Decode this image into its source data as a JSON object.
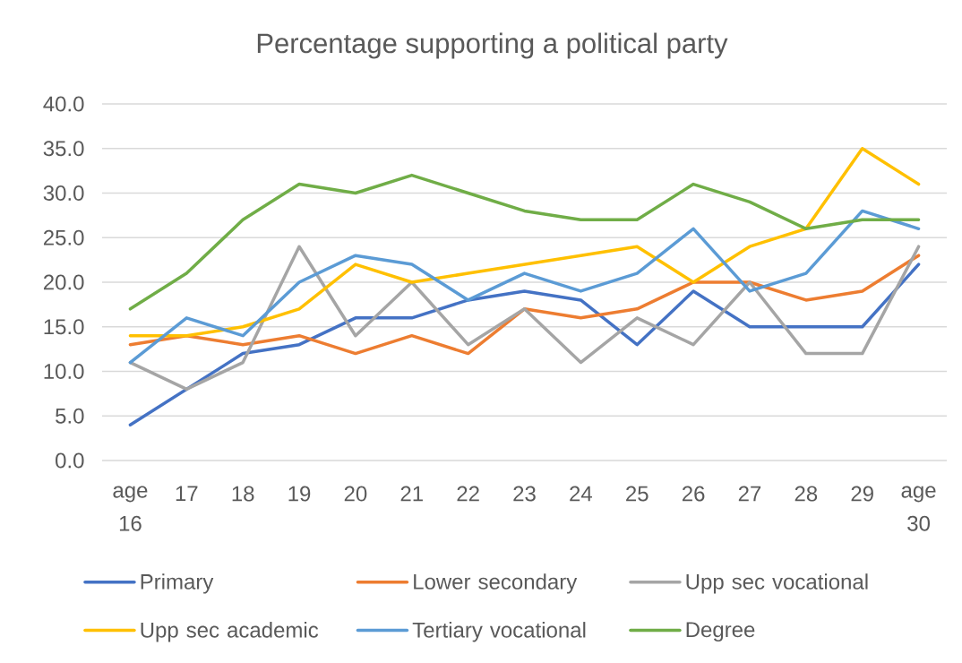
{
  "chart_data": {
    "type": "line",
    "title": "Percentage supporting a political party",
    "categories": [
      "age 16",
      "17",
      "18",
      "19",
      "20",
      "21",
      "22",
      "23",
      "24",
      "25",
      "26",
      "27",
      "28",
      "29",
      "age 30"
    ],
    "series": [
      {
        "name": "Primary",
        "color": "#4472c4",
        "values": [
          4,
          8,
          12,
          13,
          16,
          16,
          18,
          19,
          18,
          13,
          19,
          15,
          15,
          15,
          22
        ]
      },
      {
        "name": "Lower secondary",
        "color": "#ed7d31",
        "values": [
          13,
          14,
          13,
          14,
          12,
          14,
          12,
          17,
          16,
          17,
          20,
          20,
          18,
          19,
          23
        ]
      },
      {
        "name": "Upp sec vocational",
        "color": "#a5a5a5",
        "values": [
          11,
          8,
          11,
          24,
          14,
          20,
          13,
          17,
          11,
          16,
          13,
          20,
          12,
          12,
          24
        ]
      },
      {
        "name": "Upp sec academic",
        "color": "#ffc000",
        "values": [
          14,
          14,
          15,
          17,
          22,
          20,
          21,
          22,
          23,
          24,
          20,
          24,
          26,
          35,
          31
        ]
      },
      {
        "name": "Tertiary vocational",
        "color": "#5b9bd5",
        "values": [
          11,
          16,
          14,
          20,
          23,
          22,
          18,
          21,
          19,
          21,
          26,
          19,
          21,
          28,
          26
        ]
      },
      {
        "name": "Degree",
        "color": "#70ad47",
        "values": [
          17,
          21,
          27,
          31,
          30,
          32,
          30,
          28,
          27,
          27,
          31,
          29,
          26,
          27,
          27
        ]
      }
    ],
    "ylim": [
      0,
      40
    ],
    "yticks": [
      {
        "value": 0,
        "label": "0.0"
      },
      {
        "value": 5,
        "label": "5.0"
      },
      {
        "value": 10,
        "label": "10.0"
      },
      {
        "value": 15,
        "label": "15.0"
      },
      {
        "value": 20,
        "label": "20.0"
      },
      {
        "value": 25,
        "label": "25.0"
      },
      {
        "value": 30,
        "label": "30.0"
      },
      {
        "value": 35,
        "label": "35.0"
      },
      {
        "value": 40,
        "label": "40.0"
      }
    ],
    "grid": "y",
    "legend": "bottom",
    "marker": "none",
    "line_style": "solid"
  }
}
